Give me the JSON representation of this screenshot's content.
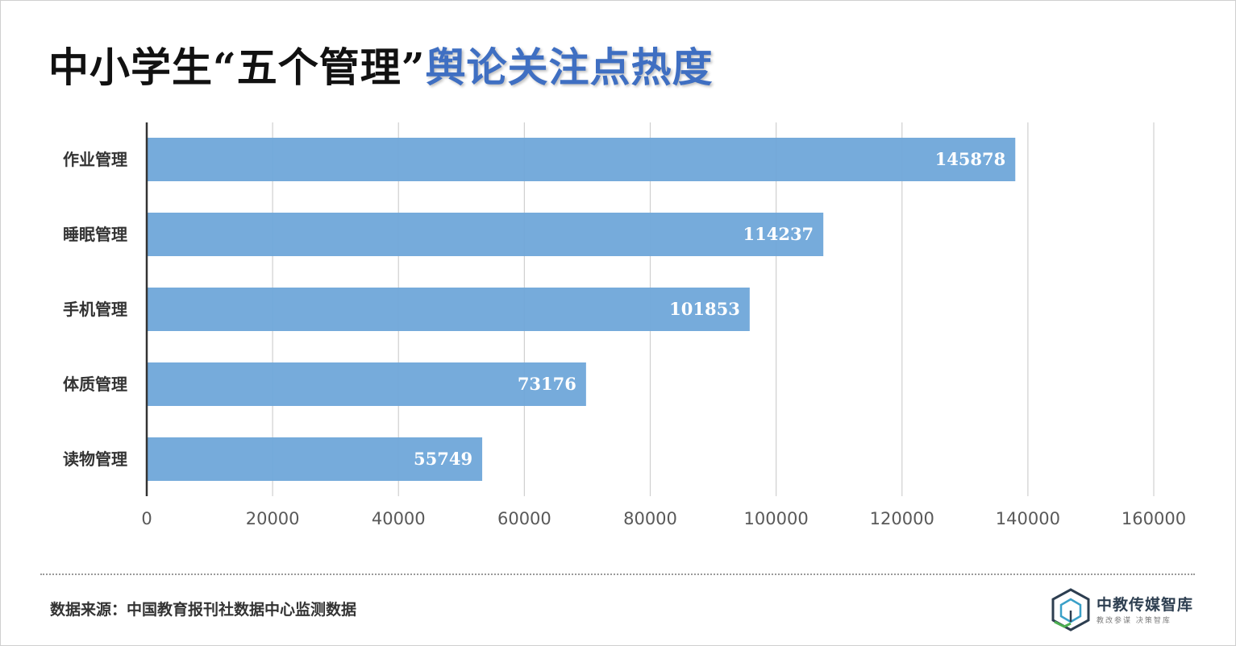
{
  "title": {
    "part1": "中小学生“五个管理”",
    "part2": "舆论关注点热度"
  },
  "chart_data": {
    "type": "bar",
    "orientation": "horizontal",
    "categories": [
      "作业管理",
      "睡眠管理",
      "手机管理",
      "体质管理",
      "读物管理"
    ],
    "values": [
      145878,
      114237,
      101853,
      73176,
      55749
    ],
    "bar_extents": [
      138000,
      107500,
      95800,
      69800,
      53300
    ],
    "xlim": [
      0,
      160000
    ],
    "xticks": [
      "0",
      "20000",
      "40000",
      "60000",
      "80000",
      "100000",
      "120000",
      "140000",
      "160000"
    ],
    "grid": "vertical",
    "bar_color": "#6fa6d9"
  },
  "source": "数据来源：中国教育报刊社数据中心监测数据",
  "logo": {
    "name": "中教传媒智库",
    "tagline": "教改参谋  决策智库",
    "icon": "cube-logo-icon"
  }
}
